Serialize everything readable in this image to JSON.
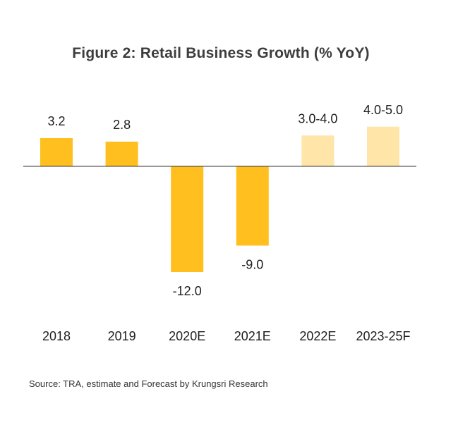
{
  "chart_data": {
    "type": "bar",
    "title": "Figure 2: Retail Business Growth (% YoY)",
    "categories": [
      "2018",
      "2019",
      "2020E",
      "2021E",
      "2022E",
      "2023-25F"
    ],
    "values": [
      3.2,
      2.8,
      -12.0,
      -9.0,
      3.5,
      4.5
    ],
    "ranges": [
      null,
      null,
      null,
      null,
      [
        3.0,
        4.0
      ],
      [
        4.0,
        5.0
      ]
    ],
    "data_labels": [
      "3.2",
      "2.8",
      "-12.0",
      "-9.0",
      "3.0-4.0",
      "4.0-5.0"
    ],
    "forecast": [
      false,
      false,
      false,
      false,
      true,
      true
    ],
    "colors": {
      "actual": "#ffbf1f",
      "forecast": "#ffe5a8",
      "axis": "#333333"
    },
    "xlabel": "",
    "ylabel": "",
    "ylim": [
      -12.0,
      5.0
    ],
    "grid": false,
    "legend": "none"
  },
  "source": "Source: TRA, estimate and Forecast by Krungsri Research"
}
